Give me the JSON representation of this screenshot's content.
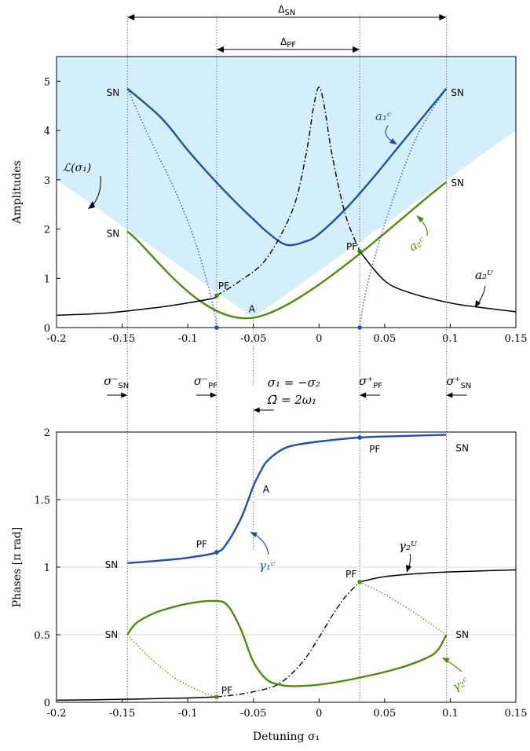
{
  "chart_data": [
    {
      "type": "line",
      "ylabel": "Amplitudes",
      "xlim": [
        -0.2,
        0.15
      ],
      "ylim": [
        0,
        5.5
      ],
      "xticks": [
        "-0.2",
        "-0.15",
        "-0.1",
        "-0.05",
        "0",
        "0.05",
        "0.1",
        "0.15"
      ],
      "yticks": [
        "0",
        "1",
        "2",
        "3",
        "4",
        "5"
      ],
      "colors": {
        "blue": "#1f4fa8",
        "green": "#4f8a10",
        "black": "#000000",
        "region": "#d4effa"
      },
      "region_label": "ℒ(σ₁)",
      "region_boundary": {
        "x": [
          -0.2,
          -0.05,
          0.15
        ],
        "y": [
          3.0,
          0.2,
          4.0
        ]
      },
      "series": [
        {
          "name": "a₁ᶜ",
          "color": "#1f4fa8",
          "style": "solid",
          "x": [
            -0.146,
            -0.12,
            -0.1,
            -0.08,
            -0.06,
            -0.05,
            -0.04,
            -0.025,
            -0.01,
            0.0,
            0.02,
            0.04,
            0.06,
            0.08,
            0.097
          ],
          "y": [
            4.85,
            4.25,
            3.6,
            3.0,
            2.45,
            2.2,
            1.95,
            1.68,
            1.75,
            1.9,
            2.4,
            3.0,
            3.65,
            4.3,
            4.85
          ]
        },
        {
          "name": "a₂ᶜ",
          "color": "#4f8a10",
          "style": "solid",
          "x": [
            -0.146,
            -0.05,
            0.097
          ],
          "y": [
            1.95,
            0.2,
            2.95
          ]
        },
        {
          "name": "a₂ᵁ",
          "color": "#000000",
          "style": "solid",
          "x": [
            -0.2,
            -0.16,
            -0.12,
            -0.1,
            -0.08,
            -0.078
          ],
          "y": [
            0.25,
            0.3,
            0.42,
            0.5,
            0.6,
            0.65
          ]
        },
        {
          "name": "a₂ᵁ",
          "color": "#000000",
          "style": "solid",
          "x": [
            0.031,
            0.05,
            0.07,
            0.1,
            0.12,
            0.15
          ],
          "y": [
            1.55,
            0.95,
            0.7,
            0.5,
            0.42,
            0.32
          ]
        },
        {
          "name": "",
          "color": "#000000",
          "style": "dashdot",
          "x": [
            -0.078,
            -0.06,
            -0.04,
            -0.02,
            -0.01,
            -0.004,
            0.0,
            0.004,
            0.01,
            0.02,
            0.031
          ],
          "y": [
            0.65,
            0.95,
            1.4,
            2.4,
            3.5,
            4.5,
            4.88,
            4.5,
            3.5,
            2.3,
            1.55
          ]
        },
        {
          "name": "",
          "color": "#1f4fa8",
          "style": "dotted",
          "x": [
            -0.146,
            -0.13,
            -0.11,
            -0.095,
            -0.085,
            -0.08,
            -0.078
          ],
          "y": [
            4.85,
            3.9,
            2.8,
            1.8,
            0.9,
            0.35,
            0.0
          ]
        },
        {
          "name": "",
          "color": "#1f4fa8",
          "style": "dotted",
          "x": [
            0.031,
            0.034,
            0.04,
            0.055,
            0.075,
            0.097
          ],
          "y": [
            0.0,
            0.5,
            1.2,
            2.5,
            3.9,
            4.85
          ]
        }
      ],
      "points": [
        {
          "x": -0.078,
          "y": 0.0,
          "color": "#1f4fa8"
        },
        {
          "x": 0.031,
          "y": 0.0,
          "color": "#1f4fa8"
        },
        {
          "x": -0.078,
          "y": 0.65,
          "color": "#4f8a10"
        },
        {
          "x": 0.031,
          "y": 1.55,
          "color": "#4f8a10"
        }
      ],
      "annotations": [
        {
          "text": "SN",
          "x": -0.146,
          "y": 4.85
        },
        {
          "text": "SN",
          "x": 0.097,
          "y": 4.85
        },
        {
          "text": "SN",
          "x": -0.146,
          "y": 1.95
        },
        {
          "text": "SN",
          "x": 0.097,
          "y": 2.95
        },
        {
          "text": "PF",
          "x": -0.078,
          "y": 0.65
        },
        {
          "text": "PF",
          "x": 0.031,
          "y": 1.55
        },
        {
          "text": "A",
          "x": -0.05,
          "y": 0.2
        }
      ],
      "spans": [
        {
          "text": "ΔSN",
          "from": -0.146,
          "to": 0.097
        },
        {
          "text": "ΔPF",
          "from": -0.078,
          "to": 0.031
        }
      ]
    },
    {
      "type": "line",
      "xlabel": "Detuning σ₁",
      "ylabel": "Phases [π rad]",
      "xlim": [
        -0.2,
        0.15
      ],
      "ylim": [
        0,
        2
      ],
      "xticks": [
        "-0.2",
        "-0.15",
        "-0.1",
        "-0.05",
        "0",
        "0.05",
        "0.1",
        "0.15"
      ],
      "yticks": [
        "0",
        "0.5",
        "1",
        "1.5",
        "2"
      ],
      "series": [
        {
          "name": "γ₁ᶜ",
          "color": "#1f4fa8",
          "style": "solid",
          "x": [
            -0.146,
            -0.12,
            -0.1,
            -0.078,
            -0.07,
            -0.06,
            -0.055,
            -0.05,
            -0.045,
            -0.04,
            -0.03,
            -0.02,
            0.0,
            0.031,
            0.06,
            0.097
          ],
          "y": [
            1.03,
            1.05,
            1.07,
            1.11,
            1.18,
            1.35,
            1.47,
            1.6,
            1.7,
            1.78,
            1.86,
            1.9,
            1.93,
            1.96,
            1.97,
            1.98
          ]
        },
        {
          "name": "γ₂ᶜ",
          "color": "#4f8a10",
          "style": "solid",
          "x": [
            -0.146,
            -0.14,
            -0.13,
            -0.12,
            -0.1,
            -0.08,
            -0.07,
            -0.06,
            -0.05,
            -0.04,
            -0.03,
            -0.02,
            0.0,
            0.03,
            0.06,
            0.08,
            0.09,
            0.097
          ],
          "y": [
            0.5,
            0.58,
            0.64,
            0.68,
            0.73,
            0.75,
            0.72,
            0.55,
            0.3,
            0.17,
            0.13,
            0.12,
            0.13,
            0.18,
            0.25,
            0.32,
            0.38,
            0.5
          ]
        },
        {
          "name": "γ₂ᵁ",
          "color": "#000000",
          "style": "solid",
          "x": [
            -0.2,
            -0.15,
            -0.1,
            -0.078
          ],
          "y": [
            0.015,
            0.022,
            0.032,
            0.04
          ]
        },
        {
          "name": "γ₂ᵁ",
          "color": "#000000",
          "style": "solid",
          "x": [
            0.031,
            0.05,
            0.08,
            0.1,
            0.15
          ],
          "y": [
            0.89,
            0.93,
            0.955,
            0.965,
            0.98
          ]
        },
        {
          "name": "",
          "color": "#000000",
          "style": "dashdot",
          "x": [
            -0.078,
            -0.06,
            -0.04,
            -0.03,
            -0.02,
            -0.01,
            0.0,
            0.01,
            0.02,
            0.031
          ],
          "y": [
            0.04,
            0.06,
            0.1,
            0.14,
            0.22,
            0.33,
            0.48,
            0.64,
            0.78,
            0.89
          ]
        },
        {
          "name": "",
          "color": "#4f8a10",
          "style": "dotted",
          "x": [
            -0.146,
            -0.13,
            -0.11,
            -0.09,
            -0.078
          ],
          "y": [
            0.5,
            0.34,
            0.18,
            0.08,
            0.04
          ]
        },
        {
          "name": "",
          "color": "#4f8a10",
          "style": "dotted",
          "x": [
            0.031,
            0.05,
            0.07,
            0.085,
            0.097
          ],
          "y": [
            0.89,
            0.8,
            0.68,
            0.58,
            0.5
          ]
        }
      ],
      "points": [
        {
          "x": 0.031,
          "y": 1.96,
          "color": "#1f4fa8"
        },
        {
          "x": -0.078,
          "y": 1.11,
          "color": "#1f4fa8"
        },
        {
          "x": -0.078,
          "y": 0.04,
          "color": "#4f8a10"
        },
        {
          "x": 0.031,
          "y": 0.89,
          "color": "#4f8a10"
        }
      ],
      "annotations": [
        {
          "text": "SN",
          "x": 0.097,
          "y": 1.98
        },
        {
          "text": "PF",
          "x": 0.031,
          "y": 1.96
        },
        {
          "text": "SN",
          "x": -0.146,
          "y": 1.03
        },
        {
          "text": "PF",
          "x": -0.078,
          "y": 1.11
        },
        {
          "text": "A",
          "x": -0.05,
          "y": 1.6
        },
        {
          "text": "PF",
          "x": 0.031,
          "y": 0.89
        },
        {
          "text": "SN",
          "x": -0.146,
          "y": 0.5
        },
        {
          "text": "SN",
          "x": 0.097,
          "y": 0.5
        },
        {
          "text": "PF",
          "x": -0.078,
          "y": 0.04
        }
      ]
    }
  ],
  "markers": [
    {
      "text": "σ⁻",
      "sub": "SN",
      "x": -0.146
    },
    {
      "text": "σ⁻",
      "sub": "PF",
      "x": -0.078
    },
    {
      "text": "σ₁ = −σ₂",
      "sub": "",
      "x": -0.05
    },
    {
      "text": "Ω̄ = 2ω₁",
      "sub": "",
      "x": -0.05
    },
    {
      "text": "σ⁺",
      "sub": "PF",
      "x": 0.031
    },
    {
      "text": "σ⁺",
      "sub": "SN",
      "x": 0.097
    }
  ]
}
